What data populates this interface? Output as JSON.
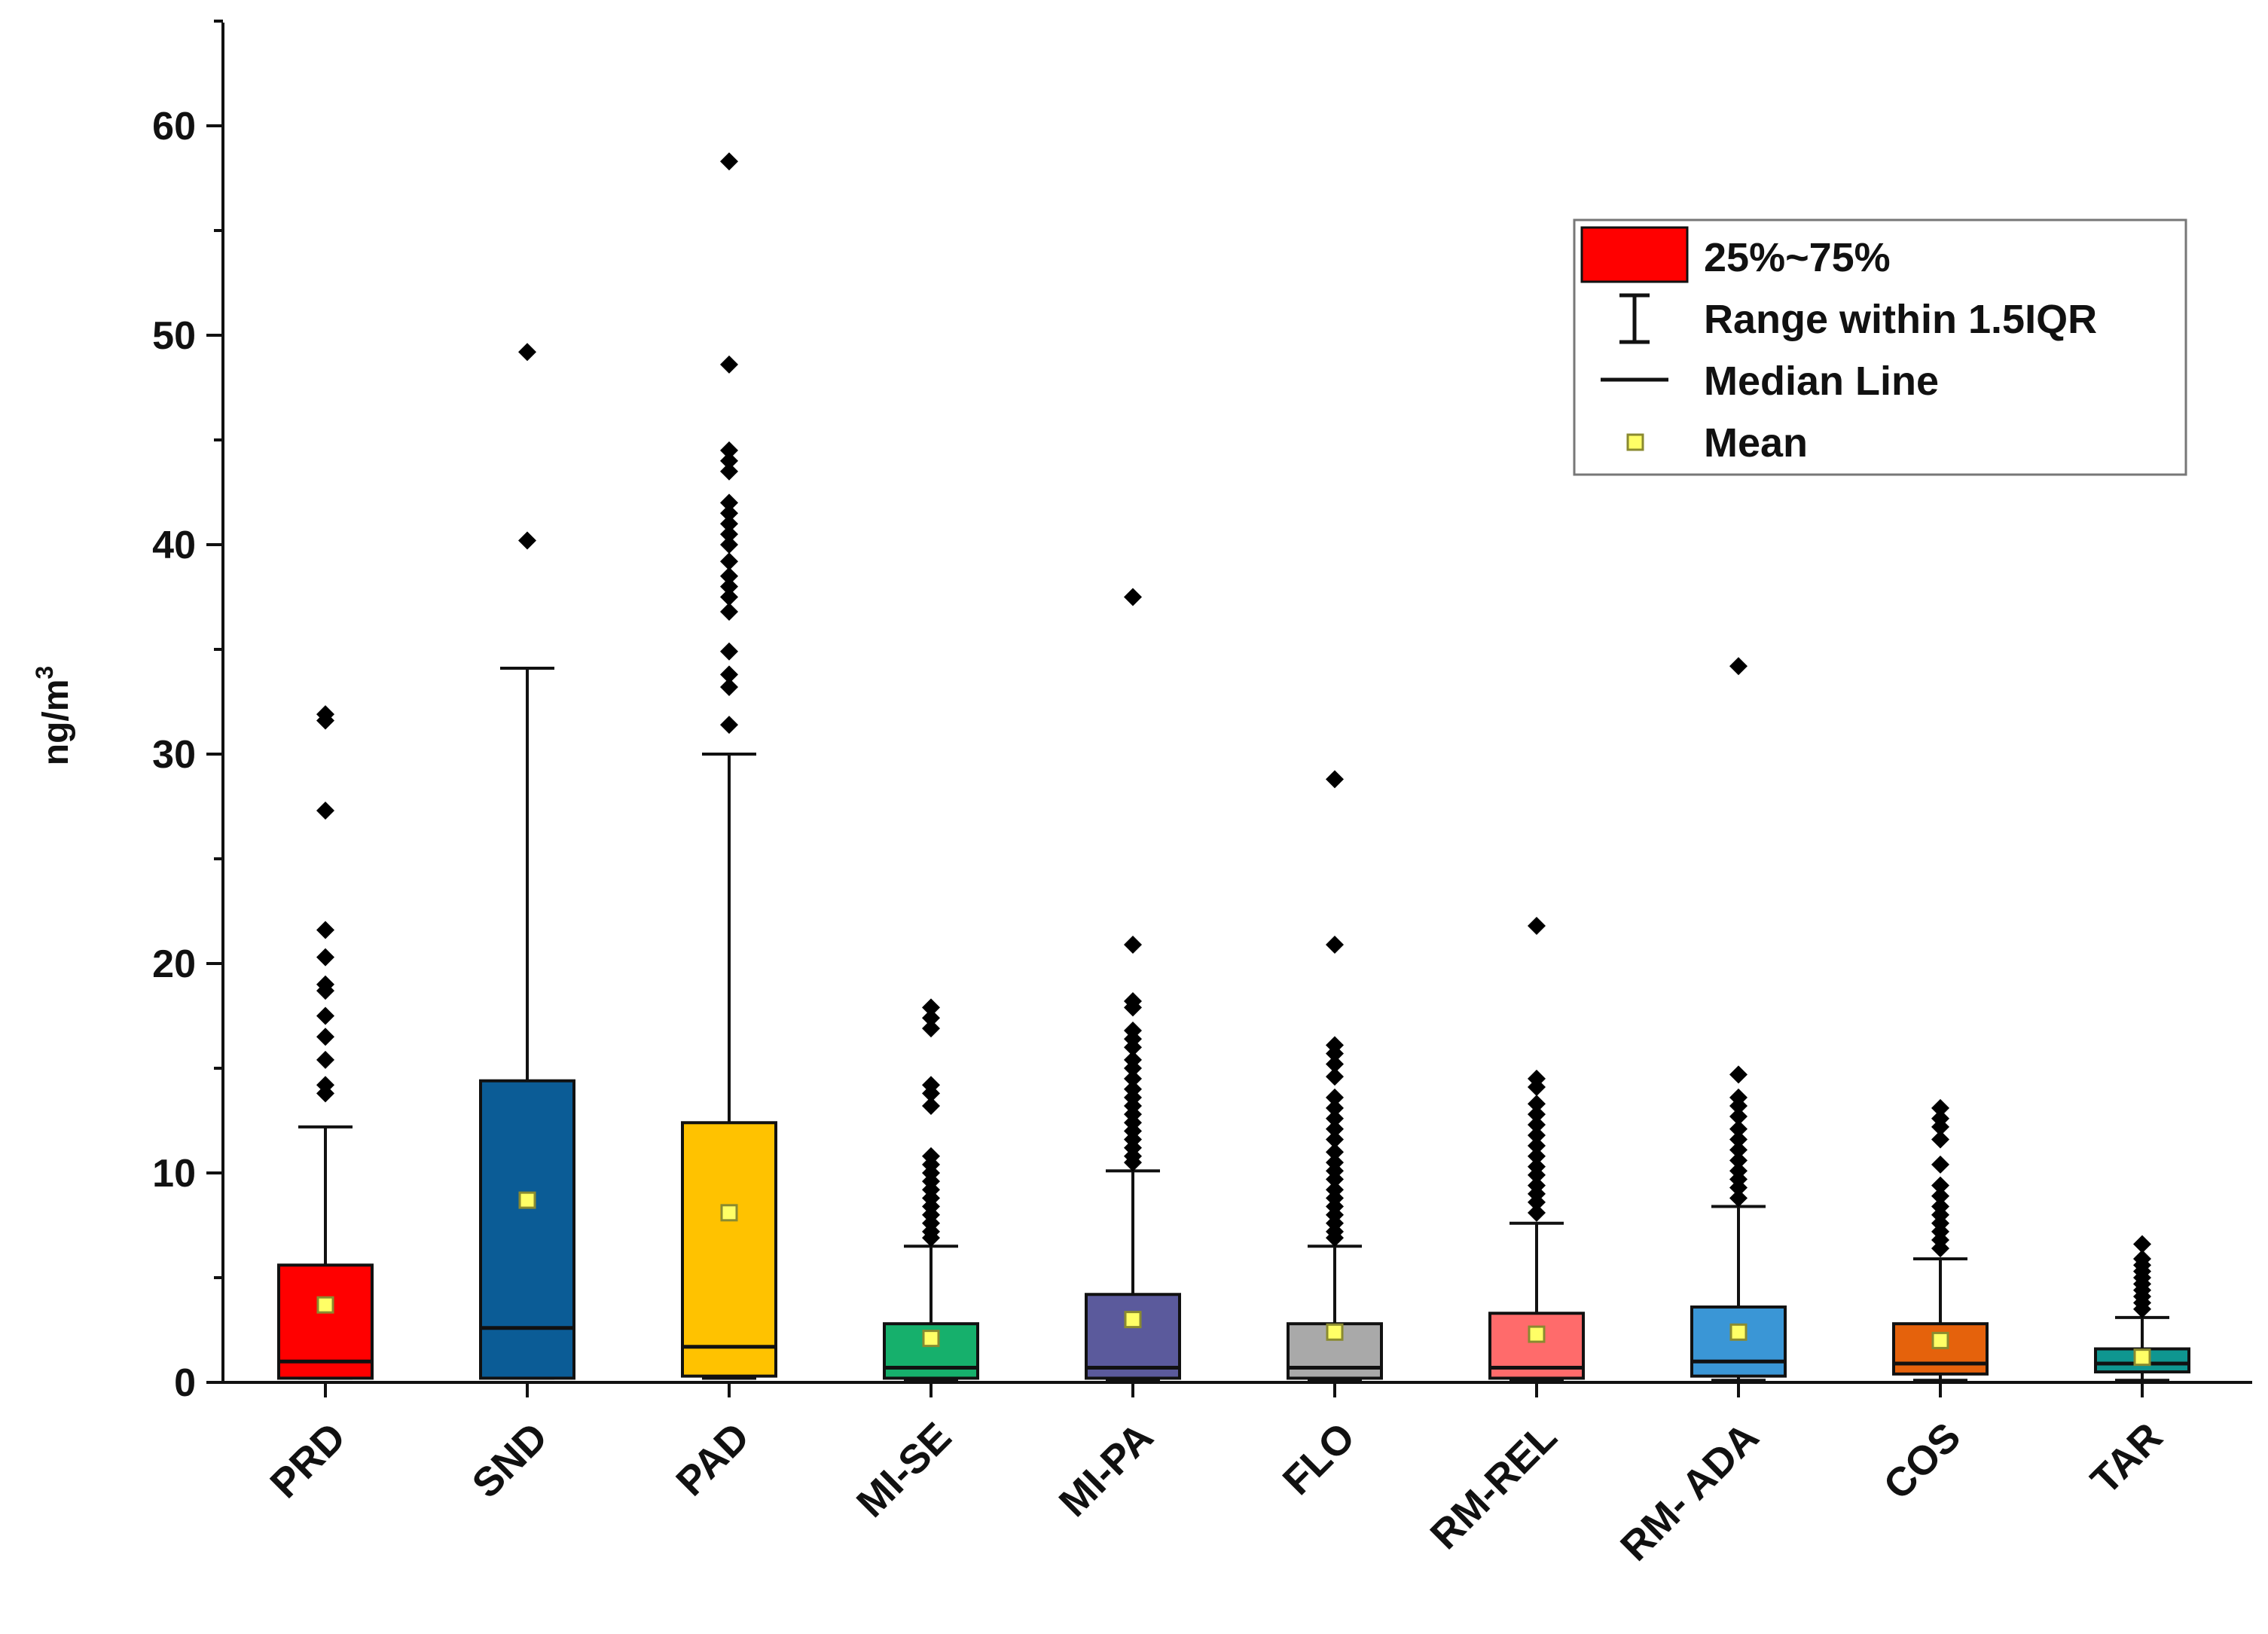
{
  "chart_data": {
    "type": "box",
    "title": "",
    "xlabel": "",
    "ylabel": "ng/m",
    "ylabel_superscript": "3",
    "ylim": [
      0,
      65
    ],
    "yticks": [
      0,
      10,
      20,
      30,
      40,
      50,
      60
    ],
    "yticks_labels": [
      "0",
      "10",
      "20",
      "30",
      "40",
      "50",
      "60"
    ],
    "categories": [
      "PRD",
      "SND",
      "PAD",
      "MI-SE",
      "MI-PA",
      "FLO",
      "RM-REL",
      "RM- ADA",
      "COS",
      "TAR"
    ],
    "boxes": [
      {
        "name": "PRD",
        "color": "#ff0000",
        "whisker_low": 0.2,
        "q1": 0.2,
        "median": 1.0,
        "q3": 5.6,
        "whisker_high": 12.2,
        "mean": 3.7,
        "outliers": [
          31.9,
          31.6,
          27.3,
          21.6,
          20.3,
          19.0,
          18.7,
          17.5,
          16.5,
          15.4,
          14.2,
          13.8
        ]
      },
      {
        "name": "SND",
        "color": "#0b5c96",
        "whisker_low": 0.2,
        "q1": 0.2,
        "median": 2.6,
        "q3": 14.4,
        "whisker_high": 34.1,
        "mean": 8.7,
        "outliers": [
          49.2,
          40.2
        ]
      },
      {
        "name": "PAD",
        "color": "#ffc200",
        "whisker_low": 0.2,
        "q1": 0.3,
        "median": 1.7,
        "q3": 12.4,
        "whisker_high": 30.0,
        "mean": 8.1,
        "outliers": [
          58.3,
          48.6,
          44.5,
          44.0,
          43.5,
          42.0,
          41.5,
          41.0,
          40.5,
          40.0,
          39.2,
          38.5,
          38.0,
          37.5,
          36.8,
          34.9,
          33.8,
          33.2,
          31.4
        ]
      },
      {
        "name": "MI-SE",
        "color": "#16b06c",
        "whisker_low": 0.1,
        "q1": 0.2,
        "median": 0.7,
        "q3": 2.8,
        "whisker_high": 6.5,
        "mean": 2.1,
        "outliers": [
          17.9,
          17.4,
          16.9,
          14.2,
          13.8,
          13.2,
          10.8,
          10.4,
          10.0,
          9.6,
          9.2,
          8.8,
          8.4,
          8.0,
          7.6,
          7.2,
          6.9
        ]
      },
      {
        "name": "MI-PA",
        "color": "#5b5a9c",
        "whisker_low": 0.1,
        "q1": 0.2,
        "median": 0.7,
        "q3": 4.2,
        "whisker_high": 10.1,
        "mean": 3.0,
        "outliers": [
          37.5,
          20.9,
          18.2,
          17.9,
          16.8,
          16.4,
          16.0,
          15.4,
          15.0,
          14.5,
          14.0,
          13.6,
          13.2,
          12.8,
          12.4,
          12.0,
          11.6,
          11.2,
          10.8,
          10.5
        ]
      },
      {
        "name": "FLO",
        "color": "#a9a9a9",
        "whisker_low": 0.1,
        "q1": 0.2,
        "median": 0.7,
        "q3": 2.8,
        "whisker_high": 6.5,
        "mean": 2.4,
        "outliers": [
          28.8,
          20.9,
          16.1,
          15.7,
          15.2,
          14.6,
          13.6,
          13.1,
          12.6,
          12.1,
          11.6,
          11.0,
          10.5,
          10.1,
          9.7,
          9.2,
          8.8,
          8.4,
          8.0,
          7.6,
          7.2,
          6.9
        ]
      },
      {
        "name": "RM-REL",
        "color": "#ff6b6b",
        "whisker_low": 0.1,
        "q1": 0.2,
        "median": 0.7,
        "q3": 3.3,
        "whisker_high": 7.6,
        "mean": 2.3,
        "outliers": [
          21.8,
          14.5,
          14.1,
          13.3,
          12.8,
          12.3,
          11.8,
          11.3,
          10.8,
          10.3,
          9.9,
          9.4,
          9.0,
          8.6,
          8.1
        ]
      },
      {
        "name": "RM- ADA",
        "color": "#3a96d6",
        "whisker_low": 0.1,
        "q1": 0.3,
        "median": 1.0,
        "q3": 3.6,
        "whisker_high": 8.4,
        "mean": 2.4,
        "outliers": [
          34.2,
          14.7,
          13.6,
          13.2,
          12.7,
          12.1,
          11.6,
          11.1,
          10.6,
          10.1,
          9.7,
          9.3,
          8.8
        ]
      },
      {
        "name": "COS",
        "color": "#e5620c",
        "whisker_low": 0.1,
        "q1": 0.4,
        "median": 0.9,
        "q3": 2.8,
        "whisker_high": 5.9,
        "mean": 2.0,
        "outliers": [
          13.1,
          12.6,
          12.2,
          11.6,
          10.4,
          9.4,
          8.9,
          8.4,
          8.0,
          7.6,
          7.2,
          6.8,
          6.4
        ]
      },
      {
        "name": "TAR",
        "color": "#0f9690",
        "whisker_low": 0.1,
        "q1": 0.5,
        "median": 0.9,
        "q3": 1.6,
        "whisker_high": 3.1,
        "mean": 1.2,
        "outliers": [
          6.6,
          5.9,
          5.6,
          5.3,
          5.0,
          4.7,
          4.4,
          4.1,
          3.8,
          3.5
        ]
      }
    ],
    "legend": {
      "position": "top-right",
      "items": [
        {
          "kind": "box",
          "label": "25%~75%",
          "color": "#ff0000"
        },
        {
          "kind": "whisker",
          "label": "Range within 1.5IQR"
        },
        {
          "kind": "median",
          "label": "Median Line"
        },
        {
          "kind": "mean",
          "label": "Mean",
          "color": "#ffff66"
        }
      ]
    },
    "outlier_color": "#000000",
    "mean_marker_color": "#ffff66"
  }
}
